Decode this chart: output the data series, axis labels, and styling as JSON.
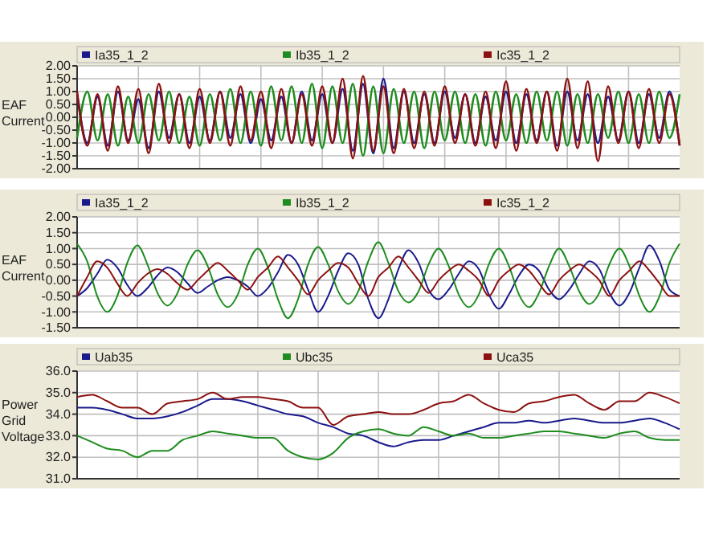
{
  "chart_data": [
    {
      "type": "line",
      "ylabel": "EAF Current",
      "legend": "top",
      "grid": true,
      "ylim": [
        -2,
        2
      ],
      "yticks": [
        {
          "value": 2,
          "label": "2.00"
        },
        {
          "value": 1.5,
          "label": "1.50"
        },
        {
          "value": 1,
          "label": "1.00"
        },
        {
          "value": 0.5,
          "label": "0.50"
        },
        {
          "value": 0,
          "label": "0.00"
        },
        {
          "value": -0.5,
          "label": "-0.50"
        },
        {
          "value": -1,
          "label": "-1.00"
        },
        {
          "value": -1.5,
          "label": "-1.50"
        },
        {
          "value": -2,
          "label": "-2.00"
        }
      ],
      "categories": [
        null,
        null,
        null,
        null,
        null,
        null,
        null,
        null,
        null,
        null,
        null,
        null,
        null,
        null,
        null,
        null,
        null,
        null,
        null,
        null,
        null,
        null,
        null,
        null,
        null,
        null,
        null,
        null,
        null,
        null,
        null,
        null,
        null,
        null,
        null,
        null,
        null,
        null,
        null,
        null,
        null,
        null,
        null,
        null,
        null,
        null,
        null,
        null,
        null,
        null,
        null,
        null,
        null,
        null,
        null,
        null,
        null,
        null,
        null,
        null
      ],
      "series": [
        {
          "name": "Ia35_1_2",
          "color": "#1a1a8c",
          "values": [
            0.9,
            -1.0,
            0.8,
            -1.1,
            1.0,
            -0.9,
            0.7,
            -1.2,
            1.0,
            -0.8,
            0.9,
            -1.0,
            0.8,
            -0.9,
            1.0,
            -0.8,
            0.9,
            -1.0,
            0.7,
            -0.9,
            0.8,
            -1.0,
            1.0,
            -0.9,
            0.9,
            -1.0,
            1.1,
            -1.3,
            1.3,
            -1.4,
            1.5,
            -1.2,
            1.0,
            -1.0,
            0.9,
            -1.0,
            1.0,
            -0.8,
            0.9,
            -1.0,
            0.8,
            -0.9,
            1.0,
            -1.0,
            0.9,
            -0.9,
            1.0,
            -1.1,
            1.0,
            -0.9,
            0.9,
            -1.0,
            0.8,
            -0.9,
            1.0,
            -1.0,
            0.9,
            -0.8,
            1.0,
            -1.1
          ]
        },
        {
          "name": "Ib35_1_2",
          "color": "#1e8c1e",
          "values": [
            -0.8,
            1.0,
            -0.9,
            0.9,
            -1.1,
            0.8,
            -1.0,
            0.9,
            -0.9,
            1.0,
            -1.0,
            0.8,
            -1.1,
            0.9,
            -0.9,
            1.1,
            -1.0,
            1.0,
            -1.1,
            1.2,
            -0.9,
            1.2,
            -1.0,
            1.3,
            -1.2,
            1.2,
            -1.0,
            1.3,
            -1.5,
            1.2,
            -1.4,
            1.1,
            -1.0,
            1.0,
            -1.2,
            1.0,
            -0.9,
            1.0,
            -1.0,
            0.9,
            -1.1,
            1.0,
            -0.9,
            0.9,
            -1.0,
            1.0,
            -0.9,
            1.0,
            -1.1,
            0.9,
            -1.0,
            0.9,
            -0.8,
            1.0,
            -1.0,
            0.9,
            -1.0,
            1.0,
            -0.8,
            0.9
          ]
        },
        {
          "name": "Ic35_1_2",
          "color": "#8c1010",
          "values": [
            1.0,
            -1.1,
            0.9,
            -1.3,
            1.2,
            -1.0,
            1.1,
            -1.4,
            1.3,
            -1.0,
            0.9,
            -1.2,
            1.1,
            -1.0,
            1.0,
            -1.1,
            1.2,
            -0.9,
            1.0,
            -1.2,
            1.1,
            -1.0,
            0.9,
            -1.1,
            1.2,
            -1.0,
            1.5,
            -1.6,
            1.6,
            -1.3,
            1.2,
            -1.4,
            1.1,
            -1.2,
            1.0,
            -1.1,
            1.2,
            -1.0,
            0.9,
            -1.1,
            1.0,
            -1.2,
            1.4,
            -1.3,
            1.1,
            -1.0,
            1.0,
            -1.3,
            1.5,
            -1.2,
            1.4,
            -1.7,
            1.2,
            -1.0,
            1.0,
            -1.2,
            1.1,
            -1.0,
            0.9,
            -1.1
          ]
        }
      ]
    },
    {
      "type": "line",
      "ylabel": "EAF Current",
      "legend": "top",
      "grid": true,
      "ylim": [
        -1.5,
        2
      ],
      "yticks": [
        {
          "value": 2,
          "label": "2.00"
        },
        {
          "value": 1.5,
          "label": "1.50"
        },
        {
          "value": 1,
          "label": "1.00"
        },
        {
          "value": 0.5,
          "label": "0.50"
        },
        {
          "value": 0,
          "label": "0.00"
        },
        {
          "value": -0.5,
          "label": "-0.50"
        },
        {
          "value": -1,
          "label": "-1.00"
        },
        {
          "value": -1.5,
          "label": "-1.50"
        }
      ],
      "categories": [
        null,
        null,
        null,
        null,
        null,
        null,
        null,
        null,
        null,
        null,
        null,
        null,
        null,
        null,
        null,
        null,
        null,
        null,
        null,
        null,
        null,
        null,
        null,
        null,
        null,
        null,
        null,
        null,
        null,
        null,
        null,
        null,
        null,
        null,
        null,
        null,
        null,
        null,
        null,
        null,
        null,
        null,
        null,
        null,
        null,
        null,
        null,
        null,
        null,
        null,
        null,
        null,
        null,
        null,
        null,
        null,
        null,
        null,
        null,
        null,
        null
      ],
      "series": [
        {
          "name": "Ia35_1_2",
          "color": "#1a1a8c",
          "values": [
            -0.5,
            -0.25,
            0.2,
            0.65,
            0.4,
            -0.15,
            -0.5,
            -0.25,
            0.15,
            0.4,
            0.25,
            -0.1,
            -0.4,
            -0.2,
            0.0,
            0.1,
            0.0,
            -0.2,
            -0.5,
            -0.25,
            0.25,
            0.8,
            0.5,
            -0.3,
            -1.0,
            -0.5,
            0.3,
            0.85,
            0.5,
            -0.6,
            -1.2,
            -0.6,
            0.35,
            0.95,
            0.55,
            -0.3,
            -0.6,
            -0.3,
            0.2,
            0.6,
            0.35,
            -0.45,
            -0.9,
            -0.45,
            0.15,
            0.5,
            0.3,
            -0.3,
            -0.6,
            -0.3,
            0.2,
            0.6,
            0.35,
            -0.4,
            -0.8,
            -0.4,
            0.4,
            1.1,
            0.6,
            -0.3,
            -0.5
          ]
        },
        {
          "name": "Ib35_1_2",
          "color": "#1e8c1e",
          "values": [
            1.15,
            0.6,
            -0.5,
            -1.0,
            -0.5,
            0.55,
            1.1,
            0.5,
            -0.4,
            -0.8,
            -0.4,
            0.5,
            0.95,
            0.45,
            -0.45,
            -0.85,
            -0.45,
            0.5,
            1.0,
            0.4,
            -0.6,
            -1.2,
            -0.6,
            0.5,
            1.05,
            0.5,
            -0.35,
            -0.75,
            -0.35,
            0.6,
            1.2,
            0.55,
            -0.35,
            -0.7,
            -0.35,
            0.5,
            1.0,
            0.45,
            -0.45,
            -0.85,
            -0.45,
            0.5,
            1.0,
            0.45,
            -0.45,
            -0.85,
            -0.4,
            0.45,
            1.0,
            0.45,
            -0.35,
            -0.75,
            -0.4,
            0.5,
            1.0,
            0.45,
            -0.5,
            -1.0,
            -0.5,
            0.55,
            1.15
          ]
        },
        {
          "name": "Ic35_1_2",
          "color": "#8c1010",
          "values": [
            -0.5,
            0.1,
            0.6,
            0.4,
            -0.1,
            -0.5,
            -0.1,
            0.2,
            0.35,
            0.2,
            -0.1,
            -0.3,
            0.0,
            0.3,
            0.55,
            0.3,
            0.0,
            -0.3,
            0.1,
            0.4,
            0.75,
            0.4,
            0.0,
            -0.45,
            0.0,
            0.3,
            0.55,
            0.4,
            -0.1,
            -0.5,
            0.1,
            0.4,
            0.75,
            0.4,
            0.0,
            -0.4,
            0.0,
            0.3,
            0.5,
            0.3,
            0.0,
            -0.5,
            0.0,
            0.3,
            0.5,
            0.3,
            -0.1,
            -0.45,
            0.0,
            0.3,
            0.5,
            0.3,
            0.0,
            -0.5,
            0.0,
            0.3,
            0.6,
            0.3,
            -0.1,
            -0.5,
            -0.5
          ]
        }
      ]
    },
    {
      "type": "line",
      "ylabel": "Power Grid Voltage",
      "legend": "top",
      "grid": true,
      "ylim": [
        31,
        36
      ],
      "yticks": [
        {
          "value": 36,
          "label": "36.0"
        },
        {
          "value": 35,
          "label": "35.0"
        },
        {
          "value": 34,
          "label": "34.0"
        },
        {
          "value": 33,
          "label": "33.0"
        },
        {
          "value": 32,
          "label": "32.0"
        },
        {
          "value": 31,
          "label": "31.0"
        }
      ],
      "categories": [
        null,
        null,
        null,
        null,
        null,
        null,
        null,
        null,
        null,
        null,
        null,
        null,
        null,
        null,
        null,
        null,
        null,
        null,
        null,
        null,
        null,
        null,
        null,
        null,
        null,
        null,
        null,
        null,
        null,
        null,
        null,
        null,
        null,
        null,
        null,
        null,
        null,
        null,
        null,
        null,
        null
      ],
      "series": [
        {
          "name": "Uab35",
          "color": "#1a1a8c",
          "values": [
            34.3,
            34.3,
            34.2,
            34.0,
            33.8,
            33.8,
            33.9,
            34.1,
            34.4,
            34.7,
            34.7,
            34.6,
            34.4,
            34.2,
            34.0,
            33.9,
            33.6,
            33.4,
            33.1,
            33.0,
            32.7,
            32.5,
            32.7,
            32.8,
            32.8,
            33.0,
            33.2,
            33.4,
            33.6,
            33.6,
            33.7,
            33.6,
            33.7,
            33.8,
            33.7,
            33.6,
            33.6,
            33.7,
            33.8,
            33.6,
            33.3
          ]
        },
        {
          "name": "Ubc35",
          "color": "#1e8c1e",
          "values": [
            33.0,
            32.7,
            32.4,
            32.3,
            32.0,
            32.3,
            32.3,
            32.8,
            33.0,
            33.2,
            33.1,
            33.0,
            32.9,
            32.9,
            32.3,
            32.0,
            31.9,
            32.2,
            32.9,
            33.2,
            33.3,
            33.1,
            33.0,
            33.4,
            33.2,
            33.0,
            33.1,
            32.9,
            32.9,
            33.0,
            33.1,
            33.2,
            33.2,
            33.1,
            33.0,
            32.9,
            33.1,
            33.2,
            32.9,
            32.8,
            32.8
          ]
        },
        {
          "name": "Uca35",
          "color": "#8c1010",
          "values": [
            34.8,
            34.9,
            34.6,
            34.3,
            34.3,
            34.0,
            34.5,
            34.6,
            34.7,
            35.0,
            34.7,
            34.8,
            34.8,
            34.7,
            34.6,
            34.3,
            34.3,
            33.5,
            33.9,
            34.0,
            34.1,
            34.0,
            34.0,
            34.2,
            34.5,
            34.6,
            34.9,
            34.5,
            34.2,
            34.1,
            34.5,
            34.6,
            34.8,
            34.9,
            34.5,
            34.2,
            34.6,
            34.6,
            35.0,
            34.8,
            34.5
          ]
        }
      ]
    }
  ]
}
